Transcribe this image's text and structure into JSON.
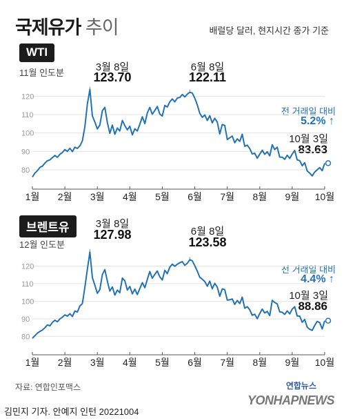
{
  "title": {
    "main": "국제유가",
    "sub": "추이"
  },
  "unit_note": "배럴당 달러, 현지시간 종가 기준",
  "source": "자료: 연합인포맥스",
  "credit": "김민지 기자. 안예지 인턴  20221004",
  "logo": {
    "korean": "연합뉴스",
    "english": "YONHAPNEWS"
  },
  "colors": {
    "line": "#2171b5",
    "accent": "#2171b5",
    "badge": "#1c1c1c"
  },
  "icons": {
    "change": "arrow-up-icon",
    "last_point": "circle-marker-icon"
  },
  "chart_data": [
    {
      "type": "line",
      "name": "WTI",
      "contract_label": "11월 인도분",
      "x_ticks": [
        "1월",
        "2월",
        "3월",
        "4월",
        "5월",
        "6월",
        "7월",
        "8월",
        "9월",
        "10월"
      ],
      "y_ticks": [
        80,
        90,
        100,
        110,
        120
      ],
      "ylim": [
        74,
        128
      ],
      "highlights": [
        {
          "date": "3월 8일",
          "value": "123.70",
          "y": 123.7,
          "idx": 23
        },
        {
          "date": "6월 8일",
          "value": "122.11",
          "y": 122.11,
          "idx": 63
        }
      ],
      "change": {
        "label": "전 거래일 대비",
        "value": "5.2%"
      },
      "last": {
        "date": "10월 3일",
        "value": "83.63"
      },
      "series": [
        {
          "name": "WTI",
          "values": [
            76.1,
            78.2,
            79.5,
            81.3,
            82.0,
            83.6,
            84.9,
            85.4,
            86.6,
            87.8,
            86.8,
            88.4,
            89.4,
            91.0,
            90.0,
            91.7,
            89.9,
            92.3,
            91.6,
            93.0,
            95.7,
            103.4,
            115.7,
            123.7,
            109.3,
            106.0,
            102.2,
            104.3,
            112.1,
            113.9,
            105.8,
            99.8,
            104.3,
            99.3,
            102.7,
            101.1,
            106.8,
            104.0,
            101.7,
            103.7,
            99.0,
            102.3,
            101.1,
            104.7,
            108.8,
            105.1,
            110.9,
            113.9,
            110.2,
            112.3,
            114.4,
            110.3,
            109.2,
            115.0,
            114.1,
            116.9,
            118.5,
            116.9,
            119.0,
            119.3,
            120.9,
            119.6,
            121.1,
            122.1,
            121.7,
            118.9,
            115.3,
            110.7,
            108.5,
            109.8,
            106.8,
            109.4,
            105.5,
            108.0,
            105.9,
            99.5,
            104.6,
            104.1,
            96.5,
            97.4,
            98.3,
            94.7,
            96.8,
            95.5,
            99.3,
            92.8,
            93.4,
            91.5,
            88.6,
            89.0,
            86.3,
            88.5,
            90.6,
            88.4,
            89.8,
            87.6,
            93.6,
            91.0,
            92.3,
            86.9,
            86.9,
            85.7,
            87.9,
            86.2,
            88.6,
            90.5,
            85.4,
            85.0,
            82.2,
            83.9,
            79.4,
            78.2,
            76.7,
            78.8,
            80.0,
            81.2,
            79.5,
            83.6
          ]
        }
      ],
      "title": "",
      "xlabel": "",
      "ylabel": "",
      "grid": true
    },
    {
      "type": "line",
      "name": "브렌트유",
      "contract_label": "12월 인도분",
      "x_ticks": [
        "1월",
        "2월",
        "3월",
        "4월",
        "5월",
        "6월",
        "7월",
        "8월",
        "9월",
        "10월"
      ],
      "y_ticks": [
        80,
        90,
        100,
        110,
        120
      ],
      "ylim": [
        75,
        130
      ],
      "highlights": [
        {
          "date": "3월 8일",
          "value": "127.98",
          "y": 127.98,
          "idx": 23
        },
        {
          "date": "6월 8일",
          "value": "123.58",
          "y": 123.58,
          "idx": 63
        }
      ],
      "change": {
        "label": "전 거래일 대비",
        "value": "4.4%"
      },
      "last": {
        "date": "10월 3일",
        "value": "88.86"
      },
      "series": [
        {
          "name": "브렌트유",
          "values": [
            78.9,
            80.4,
            81.8,
            82.8,
            83.6,
            84.9,
            86.5,
            86.0,
            87.9,
            89.2,
            88.3,
            89.9,
            90.9,
            92.2,
            91.5,
            92.9,
            91.3,
            94.4,
            93.8,
            97.3,
            98.6,
            107.9,
            118.1,
            128.0,
            113.5,
            109.1,
            104.5,
            106.6,
            115.2,
            118.0,
            111.5,
            105.8,
            108.1,
            103.5,
            106.3,
            104.8,
            113.2,
            111.6,
            106.3,
            108.4,
            104.2,
            106.9,
            103.8,
            107.2,
            110.6,
            107.7,
            112.4,
            116.9,
            113.1,
            115.3,
            117.2,
            113.9,
            112.1,
            117.6,
            115.7,
            119.4,
            121.1,
            119.9,
            121.1,
            121.9,
            122.5,
            120.4,
            121.6,
            123.6,
            123.0,
            120.2,
            117.1,
            113.6,
            112.5,
            111.2,
            108.5,
            111.4,
            107.1,
            110.2,
            108.0,
            102.8,
            107.0,
            106.6,
            100.6,
            100.8,
            101.3,
            98.2,
            100.4,
            98.7,
            102.3,
            96.0,
            96.9,
            95.1,
            92.0,
            92.6,
            90.1,
            93.0,
            95.5,
            93.3,
            94.2,
            91.8,
            100.5,
            99.3,
            98.5,
            93.9,
            93.7,
            92.5,
            94.5,
            92.8,
            95.5,
            96.9,
            91.6,
            91.5,
            88.0,
            89.6,
            85.2,
            84.0,
            83.4,
            86.2,
            88.5,
            87.8,
            84.2,
            88.9
          ]
        }
      ],
      "title": "",
      "xlabel": "",
      "ylabel": "",
      "grid": true
    }
  ]
}
